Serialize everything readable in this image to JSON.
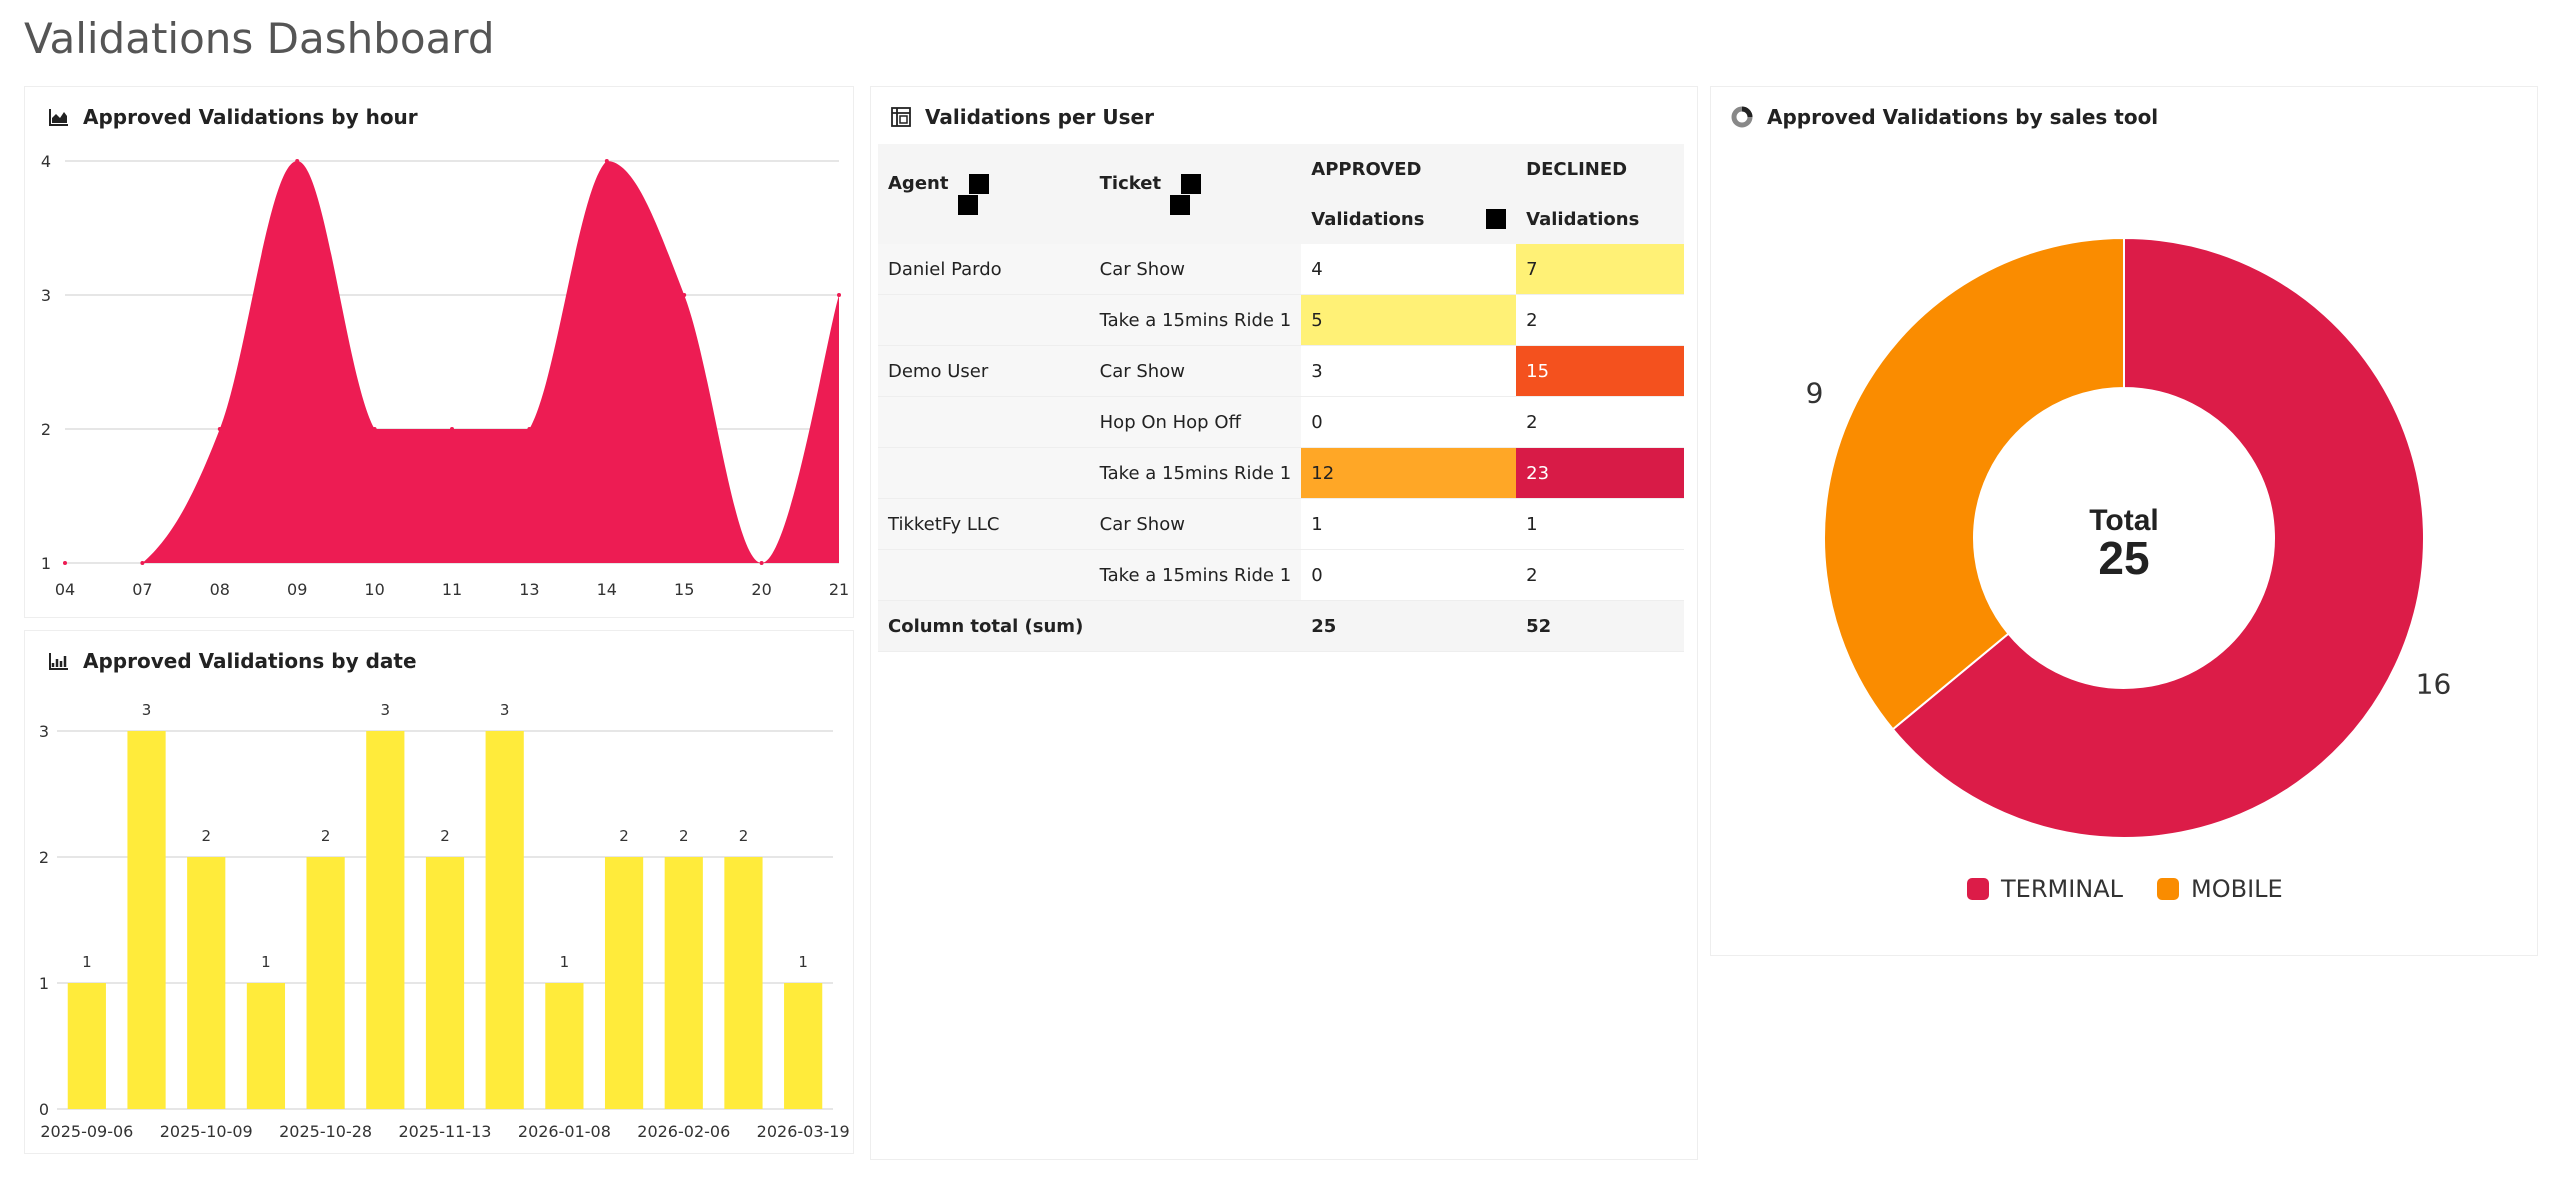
{
  "page": {
    "title": "Validations Dashboard"
  },
  "colors": {
    "area": "#ED1C53",
    "bar": "#FFEB3B",
    "terminal": "#DC1C48",
    "mobile": "#FA8C00",
    "heat_yellow": "#FFF176",
    "heat_orange": "#FFA726",
    "heat_deep_orange": "#F4511E",
    "heat_red": "#D81B47"
  },
  "panels": {
    "hourly": {
      "title": "Approved Validations by hour",
      "icon": "area-chart-icon"
    },
    "daily": {
      "title": "Approved Validations by date",
      "icon": "bar-chart-icon"
    },
    "pivot": {
      "title": "Validations per User",
      "icon": "pivot-table-icon"
    },
    "donut": {
      "title": "Approved Validations by sales tool",
      "icon": "donut-chart-icon"
    }
  },
  "pivot_table": {
    "headers": {
      "agent": "Agent",
      "ticket": "Ticket",
      "approved_top": "APPROVED",
      "approved_bottom": "Validations",
      "declined_top": "DECLINED",
      "declined_bottom": "Validations"
    },
    "rows": [
      {
        "agent": "Daniel Pardo",
        "ticket": "Car Show",
        "approved": "4",
        "declined": "7"
      },
      {
        "agent": "",
        "ticket": "Take a 15mins Ride 1",
        "approved": "5",
        "declined": "2"
      },
      {
        "agent": "Demo User",
        "ticket": "Car Show",
        "approved": "3",
        "declined": "15"
      },
      {
        "agent": "",
        "ticket": "Hop On Hop Off",
        "approved": "0",
        "declined": "2"
      },
      {
        "agent": "",
        "ticket": "Take a 15mins Ride 1",
        "approved": "12",
        "declined": "23"
      },
      {
        "agent": "TikketFy LLC",
        "ticket": "Car Show",
        "approved": "1",
        "declined": "1"
      },
      {
        "agent": "",
        "ticket": "Take a 15mins Ride 1",
        "approved": "0",
        "declined": "2"
      }
    ],
    "totals": {
      "label": "Column total (sum)",
      "approved": "25",
      "declined": "52"
    }
  },
  "chart_data": [
    {
      "type": "area",
      "title": "Approved Validations by hour",
      "x": [
        "04",
        "07",
        "08",
        "09",
        "10",
        "11",
        "13",
        "14",
        "15",
        "20",
        "21"
      ],
      "values": [
        1,
        1,
        2,
        4,
        2,
        2,
        2,
        4,
        3,
        1,
        3
      ],
      "ylim": [
        1,
        4
      ],
      "yticks": [
        1,
        2,
        3,
        4
      ],
      "grid": true
    },
    {
      "type": "bar",
      "title": "Approved Validations by date",
      "categories": [
        "2025-09-06",
        "",
        "2025-10-09",
        "",
        "2025-10-28",
        "",
        "2025-11-13",
        "",
        "2026-01-08",
        "",
        "2026-02-06",
        "",
        "2026-03-19"
      ],
      "values": [
        1,
        3,
        2,
        1,
        2,
        3,
        2,
        3,
        1,
        2,
        2,
        2,
        1
      ],
      "ylim": [
        0,
        3
      ],
      "yticks": [
        0,
        1,
        2,
        3
      ],
      "data_labels": true,
      "grid": true
    },
    {
      "type": "pie",
      "title": "Approved Validations by sales tool",
      "center_label": "Total",
      "center_value": "25",
      "slices": [
        {
          "label": "TERMINAL",
          "value": 16
        },
        {
          "label": "MOBILE",
          "value": 9
        }
      ],
      "legend": "bottom"
    }
  ]
}
